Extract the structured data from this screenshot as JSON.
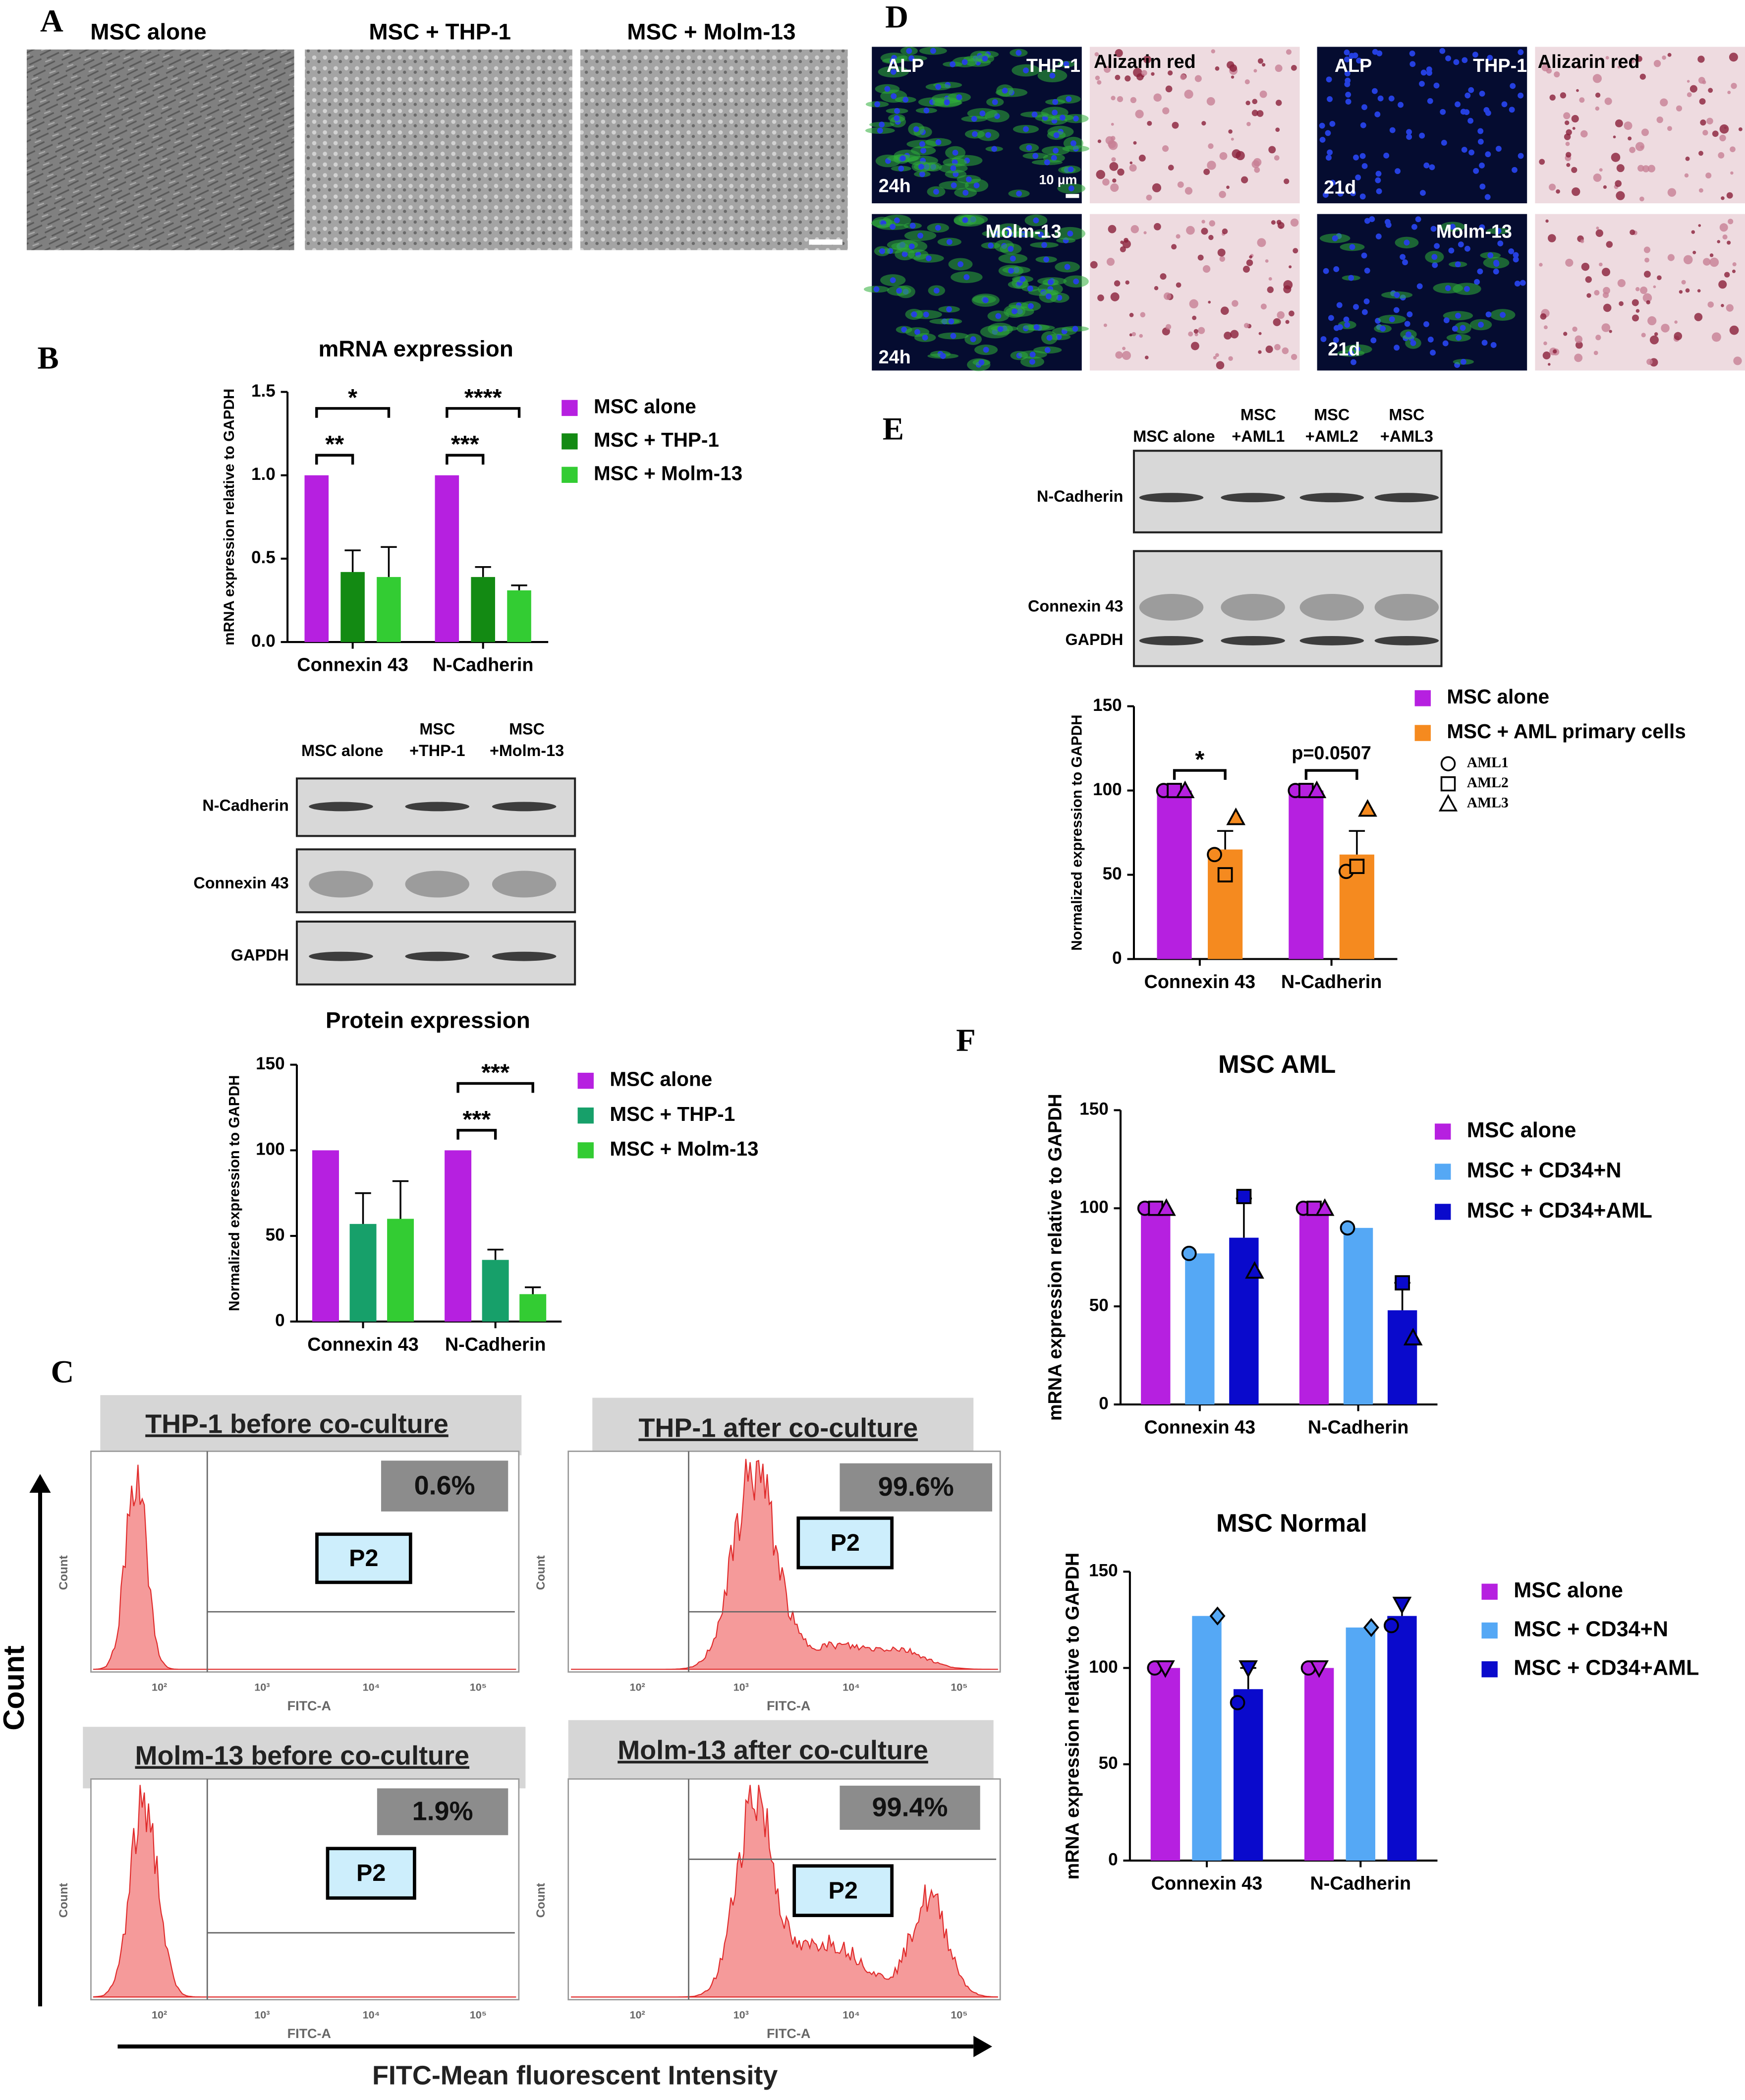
{
  "panel_labels": [
    "A",
    "B",
    "C",
    "D",
    "E",
    "F"
  ],
  "panel_a": {
    "titles": [
      "MSC alone",
      "MSC + THP-1",
      "MSC + Molm-13"
    ]
  },
  "panel_d": {
    "labels": [
      "ALP",
      "THP-1",
      "Alizarin red",
      "24h",
      "10 µm",
      "Molm-13",
      "24h",
      "ALP",
      "THP-1",
      "Alizarin red",
      "21d",
      "Molm-13",
      "21d"
    ]
  },
  "blot_b": {
    "columns": [
      [
        "MSC alone"
      ],
      [
        "MSC",
        "+THP-1"
      ],
      [
        "MSC",
        "+Molm-13"
      ]
    ],
    "rows": [
      "N-Cadherin",
      "Connexin 43",
      "GAPDH"
    ]
  },
  "blot_e": {
    "columns": [
      [
        "MSC alone"
      ],
      [
        "MSC",
        "+AML1"
      ],
      [
        "MSC",
        "+AML2"
      ],
      [
        "MSC",
        "+AML3"
      ]
    ],
    "rows": [
      "N-Cadherin",
      "Connexin 43",
      "GAPDH"
    ]
  },
  "flow": {
    "y_axis_label": "Count",
    "x_axis_label": "FITC-Mean fluorescent Intensity",
    "panel_y_label": "Count",
    "panel_x_label": "FITC-A",
    "panel_x_ticks": [
      "10²",
      "10³",
      "10⁴",
      "10⁵"
    ],
    "panels": [
      {
        "title": "THP-1 before co-culture",
        "percent": "0.6%",
        "gate": "P2"
      },
      {
        "title": "THP-1 after co-culture",
        "percent": "99.6%",
        "gate": "P2"
      },
      {
        "title": "Molm-13 before co-culture",
        "percent": "1.9%",
        "gate": "P2"
      },
      {
        "title": "Molm-13 after co-culture",
        "percent": "99.4%",
        "gate": "P2"
      }
    ]
  },
  "chart_data": [
    {
      "type": "bar",
      "title": "mRNA expression",
      "ylabel": "mRNA expression relative to GAPDH",
      "categories": [
        "Connexin 43",
        "N-Cadherin"
      ],
      "series": [
        {
          "name": "MSC alone",
          "color": "#b620e0",
          "values": [
            1,
            1
          ]
        },
        {
          "name": "MSC + THP-1",
          "color": "#138a13",
          "values": [
            0.42,
            0.39
          ],
          "errors": [
            0.13,
            0.06
          ]
        },
        {
          "name": "MSC + Molm-13",
          "color": "#33cc33",
          "values": [
            0.39,
            0.31
          ],
          "errors": [
            0.18,
            0.03
          ]
        }
      ],
      "ylim": [
        0,
        1.5
      ],
      "yticks": [
        {
          "value": 0,
          "label": "0.0"
        },
        0.5,
        {
          "value": 1,
          "label": "1.0"
        },
        1.5
      ],
      "annotations": [
        {
          "text": "**",
          "category": "Connexin 43",
          "between": [
            "MSC alone",
            "MSC + THP-1"
          ]
        },
        {
          "text": "*",
          "category": "Connexin 43",
          "between": [
            "MSC alone",
            "MSC + Molm-13"
          ]
        },
        {
          "text": "***",
          "category": "N-Cadherin",
          "between": [
            "MSC alone",
            "MSC + THP-1"
          ]
        },
        {
          "text": "****",
          "category": "N-Cadherin",
          "between": [
            "MSC alone",
            "MSC + Molm-13"
          ]
        }
      ]
    },
    {
      "type": "bar",
      "title": "Protein expression",
      "ylabel": "Normalized expression to GAPDH",
      "categories": [
        "Connexin 43",
        "N-Cadherin"
      ],
      "series": [
        {
          "name": "MSC alone",
          "color": "#b620e0",
          "values": [
            100,
            100
          ]
        },
        {
          "name": "MSC + THP-1",
          "color": "#17a06a",
          "values": [
            57,
            36
          ],
          "errors": [
            18,
            6
          ]
        },
        {
          "name": "MSC + Molm-13",
          "color": "#33cc33",
          "values": [
            60,
            16
          ],
          "errors": [
            22,
            4
          ]
        }
      ],
      "ylim": [
        0,
        150
      ],
      "yticks": [
        0,
        50,
        100,
        150
      ],
      "annotations": [
        {
          "text": "***",
          "category": "N-Cadherin",
          "between": [
            "MSC alone",
            "MSC + THP-1"
          ]
        },
        {
          "text": "***",
          "category": "N-Cadherin",
          "between": [
            "MSC alone",
            "MSC + Molm-13"
          ]
        }
      ]
    },
    {
      "type": "bar",
      "ylabel": "Normalized expression to GAPDH",
      "categories": [
        "Connexin 43",
        "N-Cadherin"
      ],
      "series": [
        {
          "name": "MSC alone",
          "color": "#b620e0",
          "values": [
            100,
            100
          ]
        },
        {
          "name": "MSC + AML primary cells",
          "color": "#f58a1f",
          "values": [
            65,
            62
          ],
          "errors": [
            11,
            14
          ]
        }
      ],
      "points": [
        {
          "name": "AML1",
          "marker": "circle",
          "values": [
            [
              100,
              100
            ],
            [
              62,
              52
            ]
          ]
        },
        {
          "name": "AML2",
          "marker": "square",
          "values": [
            [
              100,
              100
            ],
            [
              50,
              55
            ]
          ]
        },
        {
          "name": "AML3",
          "marker": "triangle",
          "values": [
            [
              100,
              100
            ],
            [
              84,
              89
            ]
          ]
        }
      ],
      "ylim": [
        0,
        150
      ],
      "yticks": [
        0,
        50,
        100,
        150
      ],
      "annotations": [
        {
          "text": "*",
          "category": "Connexin 43",
          "between": [
            "MSC alone",
            "MSC + AML primary cells"
          ]
        },
        {
          "text": "p=0.0507",
          "category": "N-Cadherin",
          "between": [
            "MSC alone",
            "MSC + AML primary cells"
          ]
        }
      ]
    },
    {
      "type": "bar",
      "title": "MSC AML",
      "ylabel": "mRNA expression relative to GAPDH",
      "categories": [
        "Connexin 43",
        "N-Cadherin"
      ],
      "series": [
        {
          "name": "MSC alone",
          "color": "#b620e0",
          "values": [
            100,
            100
          ]
        },
        {
          "name": "MSC + CD34+N",
          "color": "#55a8f5",
          "values": [
            77,
            90
          ]
        },
        {
          "name": "MSC + CD34+AML",
          "color": "#0a0acc",
          "values": [
            85,
            48
          ],
          "errors": [
            20,
            14
          ]
        }
      ],
      "points": [
        {
          "marker": "circle",
          "values": [
            [
              100,
              100
            ],
            [
              77,
              90
            ],
            [
              null,
              null
            ]
          ]
        },
        {
          "marker": "square",
          "values": [
            [
              100,
              100
            ],
            [
              null,
              null
            ],
            [
              106,
              62
            ]
          ]
        },
        {
          "marker": "triangle",
          "values": [
            [
              100,
              100
            ],
            [
              null,
              null
            ],
            [
              68,
              34
            ]
          ]
        }
      ],
      "ylim": [
        0,
        150
      ],
      "yticks": [
        0,
        50,
        100,
        150
      ]
    },
    {
      "type": "bar",
      "title": "MSC Normal",
      "ylabel": "mRNA expression relative to GAPDH",
      "categories": [
        "Connexin 43",
        "N-Cadherin"
      ],
      "series": [
        {
          "name": "MSC alone",
          "color": "#b620e0",
          "values": [
            100,
            100
          ]
        },
        {
          "name": "MSC + CD34+N",
          "color": "#55a8f5",
          "values": [
            127,
            121
          ]
        },
        {
          "name": "MSC + CD34+AML",
          "color": "#0a0acc",
          "values": [
            89,
            127
          ],
          "errors": [
            11,
            9
          ]
        }
      ],
      "points": [
        {
          "marker": "circle",
          "values": [
            [
              100,
              100
            ],
            [
              null,
              null
            ],
            [
              82,
              122
            ]
          ]
        },
        {
          "marker": "triangle-down",
          "values": [
            [
              100,
              100
            ],
            [
              null,
              null
            ],
            [
              100,
              133
            ]
          ]
        },
        {
          "marker": "diamond",
          "values": [
            [
              null,
              null
            ],
            [
              127,
              121
            ],
            [
              null,
              null
            ]
          ]
        }
      ],
      "ylim": [
        0,
        150
      ],
      "yticks": [
        0,
        50,
        100,
        150
      ]
    }
  ]
}
